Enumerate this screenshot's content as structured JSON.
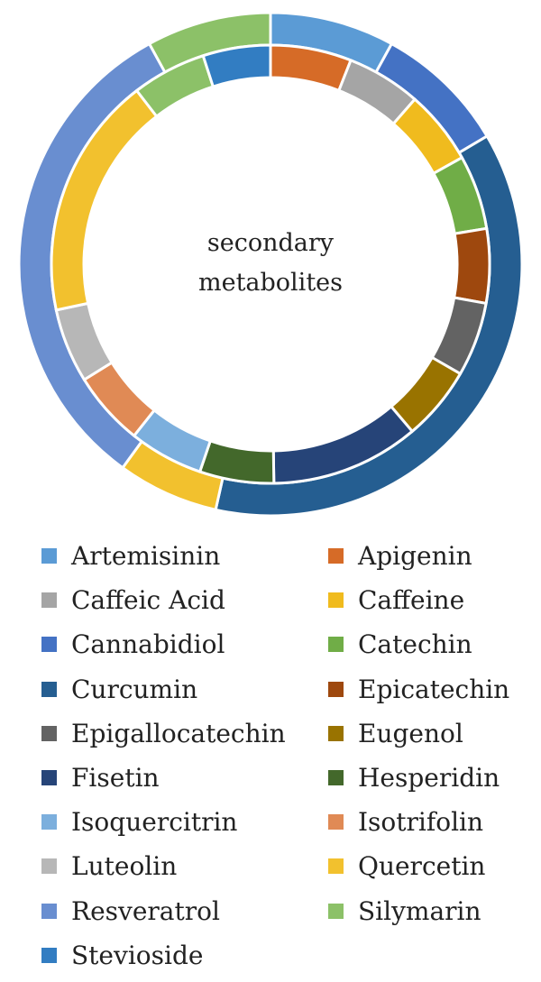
{
  "chart_data": {
    "type": "donut",
    "center_text": [
      "secondary",
      "metabolites"
    ],
    "legend_position": "bottom",
    "categories": [
      "Artemisinin",
      "Apigenin",
      "Caffeic Acid",
      "Caffeine",
      "Cannabidiol",
      "Catechin",
      "Curcumin",
      "Epicatechin",
      "Epigallocatechin",
      "Eugenol",
      "Fisetin",
      "Hesperidin",
      "Isoquercitrin",
      "Isotrifolin",
      "Luteolin",
      "Quercetin",
      "Resveratrol",
      "Silymarin",
      "Stevioside"
    ],
    "colors": {
      "Artemisinin": "#5b9bd5",
      "Apigenin": "#d66b27",
      "Caffeic Acid": "#a5a5a5",
      "Caffeine": "#f0bb1e",
      "Cannabidiol": "#4472c4",
      "Catechin": "#70ad47",
      "Curcumin": "#255e91",
      "Epicatechin": "#9e480e",
      "Epigallocatechin": "#636363",
      "Eugenol": "#997300",
      "Fisetin": "#264478",
      "Hesperidin": "#43682b",
      "Isoquercitrin": "#7cafdd",
      "Isotrifolin": "#e08a55",
      "Luteolin": "#b7b7b7",
      "Quercetin": "#f2c12e",
      "Resveratrol": "#698ed0",
      "Silymarin": "#8cc168",
      "Stevioside": "#327dc2"
    },
    "series": [
      {
        "ring": "outer",
        "slices": [
          {
            "label": "Artemisinin",
            "value": 8.0
          },
          {
            "label": "Cannabidiol",
            "value": 8.5
          },
          {
            "label": "Curcumin",
            "value": 37.0
          },
          {
            "label": "Quercetin",
            "value": 6.5
          },
          {
            "label": "Resveratrol",
            "value": 32.0
          },
          {
            "label": "Silymarin",
            "value": 8.0
          }
        ]
      },
      {
        "ring": "inner",
        "slices": [
          {
            "label": "Apigenin",
            "value": 6.0
          },
          {
            "label": "Caffeic Acid",
            "value": 5.5
          },
          {
            "label": "Caffeine",
            "value": 5.5
          },
          {
            "label": "Catechin",
            "value": 5.5
          },
          {
            "label": "Epicatechin",
            "value": 5.5
          },
          {
            "label": "Epigallocatechin",
            "value": 5.5
          },
          {
            "label": "Eugenol",
            "value": 5.5
          },
          {
            "label": "Fisetin",
            "value": 11.0
          },
          {
            "label": "Hesperidin",
            "value": 5.5
          },
          {
            "label": "Isoquercitrin",
            "value": 5.5
          },
          {
            "label": "Isotrifolin",
            "value": 5.5
          },
          {
            "label": "Luteolin",
            "value": 5.5
          },
          {
            "label": "Quercetin",
            "value": 18.0
          },
          {
            "label": "Silymarin",
            "value": 5.5
          },
          {
            "label": "Stevioside",
            "value": 5.0
          }
        ]
      }
    ]
  }
}
